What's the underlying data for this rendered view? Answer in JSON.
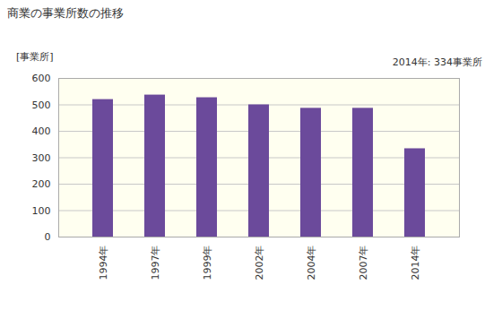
{
  "chart_data": {
    "type": "bar",
    "title": "商業の事業所数の推移",
    "ylabel": "[事業所]",
    "annotations": [
      "2014年: 334事業所"
    ],
    "categories": [
      "1994年",
      "1997年",
      "1999年",
      "2002年",
      "2004年",
      "2007年",
      "2014年"
    ],
    "values": [
      520,
      537,
      527,
      500,
      487,
      487,
      334
    ],
    "color": "#6b4a9b",
    "ylim": [
      0,
      600
    ],
    "yticks": [
      0,
      100,
      200,
      300,
      400,
      500,
      600
    ],
    "grid": true
  }
}
